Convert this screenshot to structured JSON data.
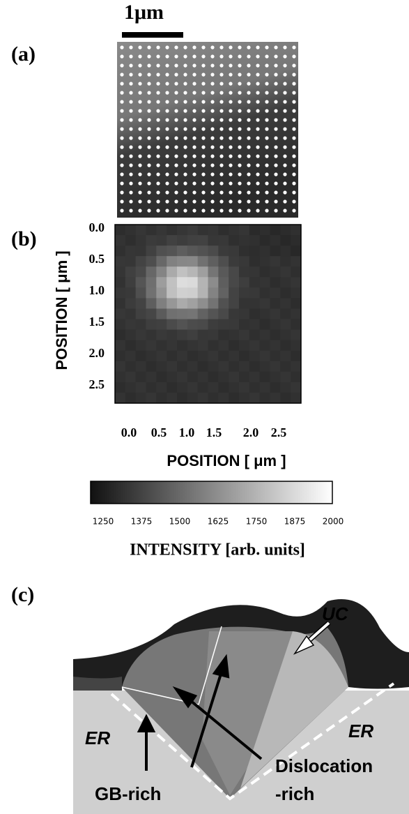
{
  "scale_bar": "1μm",
  "panels": [
    {
      "label": "(a)"
    },
    {
      "label": "(b)",
      "y_axis_label": "POSITION [ μm ]",
      "y_ticks": [
        "0.0",
        "0.5",
        "1.0",
        "1.5",
        "2.0",
        "2.5"
      ],
      "x_ticks": [
        "0.0",
        "0.5",
        "1.0",
        "1.5",
        "2.0",
        "2.5"
      ],
      "x_axis_label": "POSITION [ μm ]",
      "colorbar": {
        "ticks": [
          "1250",
          "1375",
          "1500",
          "1625",
          "1750",
          "1875",
          "2000"
        ],
        "label": "INTENSITY [arb. units]"
      }
    },
    {
      "label": "(c)",
      "annotations": [
        "UC",
        "ER",
        "ER",
        "GB-rich",
        "Dislocation",
        "-rich"
      ]
    }
  ]
}
